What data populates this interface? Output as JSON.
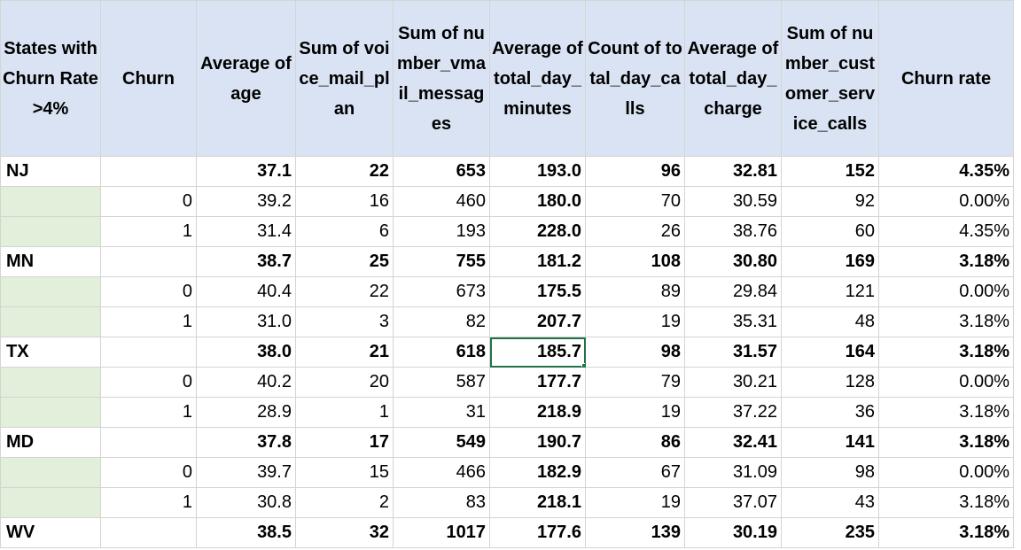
{
  "headers": [
    "States with Churn Rate >4%",
    "Churn",
    "Average of age",
    "Sum of voice_mail_plan",
    "Sum of number_vmail_messages",
    "Average of total_day_minutes",
    "Count of total_day_calls",
    "Average of total_day_charge",
    "Sum of number_customer_service_calls",
    "Churn rate"
  ],
  "rows": [
    {
      "type": "total",
      "state": "NJ",
      "churn": "",
      "age": "37.1",
      "vm_plan": "22",
      "vmail_msgs": "653",
      "day_min": "193.0",
      "day_calls": "96",
      "day_charge": "32.81",
      "cs_calls": "152",
      "churn_rate": "4.35%"
    },
    {
      "type": "detail",
      "state": "",
      "churn": "0",
      "age": "39.2",
      "vm_plan": "16",
      "vmail_msgs": "460",
      "day_min": "180.0",
      "day_calls": "70",
      "day_charge": "30.59",
      "cs_calls": "92",
      "churn_rate": "0.00%"
    },
    {
      "type": "detail",
      "state": "",
      "churn": "1",
      "age": "31.4",
      "vm_plan": "6",
      "vmail_msgs": "193",
      "day_min": "228.0",
      "day_calls": "26",
      "day_charge": "38.76",
      "cs_calls": "60",
      "churn_rate": "4.35%"
    },
    {
      "type": "total",
      "state": "MN",
      "churn": "",
      "age": "38.7",
      "vm_plan": "25",
      "vmail_msgs": "755",
      "day_min": "181.2",
      "day_calls": "108",
      "day_charge": "30.80",
      "cs_calls": "169",
      "churn_rate": "3.18%"
    },
    {
      "type": "detail",
      "state": "",
      "churn": "0",
      "age": "40.4",
      "vm_plan": "22",
      "vmail_msgs": "673",
      "day_min": "175.5",
      "day_calls": "89",
      "day_charge": "29.84",
      "cs_calls": "121",
      "churn_rate": "0.00%"
    },
    {
      "type": "detail",
      "state": "",
      "churn": "1",
      "age": "31.0",
      "vm_plan": "3",
      "vmail_msgs": "82",
      "day_min": "207.7",
      "day_calls": "19",
      "day_charge": "35.31",
      "cs_calls": "48",
      "churn_rate": "3.18%"
    },
    {
      "type": "total",
      "state": "TX",
      "churn": "",
      "age": "38.0",
      "vm_plan": "21",
      "vmail_msgs": "618",
      "day_min": "185.7",
      "day_calls": "98",
      "day_charge": "31.57",
      "cs_calls": "164",
      "churn_rate": "3.18%",
      "selected": "day_min"
    },
    {
      "type": "detail",
      "state": "",
      "churn": "0",
      "age": "40.2",
      "vm_plan": "20",
      "vmail_msgs": "587",
      "day_min": "177.7",
      "day_calls": "79",
      "day_charge": "30.21",
      "cs_calls": "128",
      "churn_rate": "0.00%"
    },
    {
      "type": "detail",
      "state": "",
      "churn": "1",
      "age": "28.9",
      "vm_plan": "1",
      "vmail_msgs": "31",
      "day_min": "218.9",
      "day_calls": "19",
      "day_charge": "37.22",
      "cs_calls": "36",
      "churn_rate": "3.18%"
    },
    {
      "type": "total",
      "state": "MD",
      "churn": "",
      "age": "37.8",
      "vm_plan": "17",
      "vmail_msgs": "549",
      "day_min": "190.7",
      "day_calls": "86",
      "day_charge": "32.41",
      "cs_calls": "141",
      "churn_rate": "3.18%"
    },
    {
      "type": "detail",
      "state": "",
      "churn": "0",
      "age": "39.7",
      "vm_plan": "15",
      "vmail_msgs": "466",
      "day_min": "182.9",
      "day_calls": "67",
      "day_charge": "31.09",
      "cs_calls": "98",
      "churn_rate": "0.00%"
    },
    {
      "type": "detail",
      "state": "",
      "churn": "1",
      "age": "30.8",
      "vm_plan": "2",
      "vmail_msgs": "83",
      "day_min": "218.1",
      "day_calls": "19",
      "day_charge": "37.07",
      "cs_calls": "43",
      "churn_rate": "3.18%"
    },
    {
      "type": "total",
      "state": "WV",
      "churn": "",
      "age": "38.5",
      "vm_plan": "32",
      "vmail_msgs": "1017",
      "day_min": "177.6",
      "day_calls": "139",
      "day_charge": "30.19",
      "cs_calls": "235",
      "churn_rate": "3.18%"
    }
  ],
  "colors": {
    "header_bg": "#dae3f3",
    "state_col_bg": "#e2efda",
    "gridline": "#d4d4d4",
    "selection": "#217346"
  }
}
